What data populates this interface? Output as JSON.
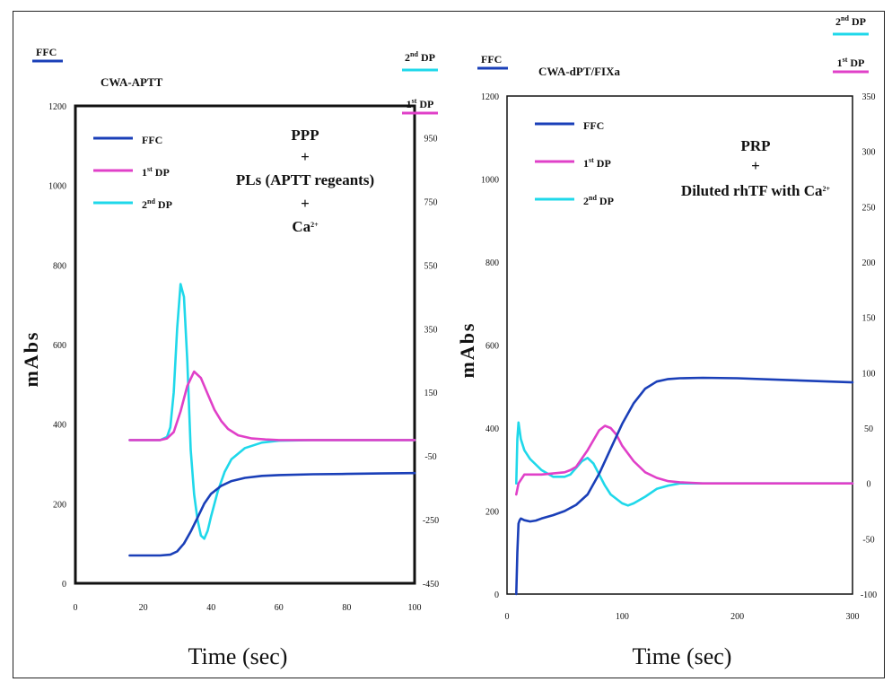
{
  "chart_data": [
    {
      "type": "line",
      "title": "CWA-APTT",
      "xlabel": "Time (sec)",
      "ylabel": "mAbs",
      "xlim": [
        0,
        100
      ],
      "ylim_left": [
        0,
        1200
      ],
      "ylim_right": [
        -450,
        1050
      ],
      "x_ticks": [
        "0",
        "20",
        "40",
        "60",
        "80",
        "100"
      ],
      "y_left_ticks": [
        "0",
        "200",
        "400",
        "600",
        "800",
        "1000",
        "1200"
      ],
      "y_right_ticks": [
        "-450",
        "-250",
        "-50",
        "150",
        "350",
        "550",
        "750",
        "950"
      ],
      "condition": [
        "PPP",
        "+",
        "PLs (APTT regeants)",
        "+",
        "Ca"
      ],
      "condition_sup": "2+",
      "outer_legend": {
        "ffc": "FFC",
        "dp2": "2",
        "dp2_sup": "nd",
        "dp1": "1",
        "dp1_sup": "st",
        "dp_suffix": "DP"
      },
      "legend": {
        "ffc": "FFC",
        "dp1": "1",
        "dp1_sup": "st",
        "dp2": "2",
        "dp2_sup": "nd",
        "dp_suffix": "DP"
      },
      "series": [
        {
          "name": "FFC",
          "axis": "left",
          "color": "#1a3fb8",
          "x": [
            16,
            20,
            25,
            28,
            30,
            32,
            34,
            36,
            38,
            40,
            43,
            46,
            50,
            55,
            60,
            70,
            80,
            90,
            100
          ],
          "y": [
            70,
            70,
            70,
            72,
            80,
            100,
            130,
            165,
            200,
            225,
            245,
            257,
            265,
            270,
            272,
            274,
            275,
            276,
            277
          ]
        },
        {
          "name": "1st DP",
          "axis": "right",
          "color": "#e040c8",
          "x": [
            16,
            20,
            25,
            27,
            29,
            31,
            33,
            35,
            37,
            39,
            41,
            43,
            45,
            48,
            52,
            56,
            60,
            70,
            80,
            100
          ],
          "y": [
            0,
            0,
            0,
            5,
            25,
            90,
            170,
            215,
            195,
            145,
            95,
            60,
            35,
            15,
            5,
            2,
            0,
            0,
            0,
            0
          ]
        },
        {
          "name": "2nd DP",
          "axis": "right",
          "color": "#1fd8ea",
          "x": [
            16,
            20,
            25,
            27,
            28,
            29,
            30,
            31,
            32,
            33,
            34,
            35,
            36,
            37,
            38,
            39,
            40,
            42,
            44,
            46,
            50,
            55,
            60,
            70,
            80,
            100
          ],
          "y": [
            0,
            0,
            0,
            10,
            40,
            150,
            350,
            490,
            450,
            250,
            -30,
            -170,
            -250,
            -300,
            -310,
            -285,
            -240,
            -160,
            -100,
            -60,
            -25,
            -8,
            -2,
            0,
            0,
            0
          ]
        }
      ]
    },
    {
      "type": "line",
      "title": "CWA-dPT/FIXa",
      "xlabel": "Time (sec)",
      "ylabel": "mAbs",
      "xlim": [
        0,
        300
      ],
      "ylim_left": [
        0,
        1200
      ],
      "ylim_right": [
        -100,
        350
      ],
      "x_ticks": [
        "0",
        "100",
        "200",
        "300"
      ],
      "y_left_ticks": [
        "0",
        "200",
        "400",
        "600",
        "800",
        "1000",
        "1200"
      ],
      "y_right_ticks": [
        "-100",
        "-50",
        "0",
        "50",
        "100",
        "150",
        "200",
        "250",
        "300",
        "350"
      ],
      "condition": [
        "PRP",
        "+",
        "Diluted rhTF with Ca"
      ],
      "condition_sup": "2+",
      "outer_legend": {
        "ffc": "FFC",
        "dp2": "2",
        "dp2_sup": "nd",
        "dp1": "1",
        "dp1_sup": "st",
        "dp_suffix": "DP"
      },
      "legend": {
        "ffc": "FFC",
        "dp1": "1",
        "dp1_sup": "st",
        "dp2": "2",
        "dp2_sup": "nd",
        "dp_suffix": "DP"
      },
      "series": [
        {
          "name": "FFC",
          "axis": "left",
          "color": "#1a3fb8",
          "x": [
            8,
            9,
            10,
            11,
            12,
            15,
            20,
            25,
            30,
            40,
            50,
            60,
            70,
            80,
            90,
            100,
            110,
            120,
            130,
            140,
            150,
            170,
            200,
            250,
            300
          ],
          "y": [
            0,
            100,
            170,
            178,
            182,
            178,
            175,
            177,
            182,
            190,
            200,
            215,
            240,
            290,
            350,
            410,
            460,
            495,
            512,
            518,
            520,
            521,
            520,
            515,
            510
          ]
        },
        {
          "name": "1st DP",
          "axis": "right",
          "color": "#e040c8",
          "x": [
            8,
            10,
            15,
            20,
            30,
            40,
            50,
            55,
            60,
            70,
            80,
            85,
            90,
            95,
            100,
            110,
            120,
            130,
            140,
            150,
            170,
            200,
            250,
            300
          ],
          "y": [
            -10,
            0,
            8,
            8,
            8,
            9,
            10,
            12,
            15,
            30,
            48,
            52,
            50,
            44,
            34,
            20,
            10,
            5,
            2,
            1,
            0,
            0,
            0,
            0
          ]
        },
        {
          "name": "2nd DP",
          "axis": "right",
          "color": "#1fd8ea",
          "x": [
            8,
            9,
            10,
            12,
            15,
            20,
            30,
            40,
            50,
            55,
            60,
            65,
            70,
            75,
            80,
            85,
            90,
            100,
            105,
            110,
            120,
            130,
            140,
            150,
            170,
            200,
            250,
            300
          ],
          "y": [
            0,
            40,
            55,
            40,
            30,
            22,
            12,
            6,
            6,
            8,
            14,
            20,
            23,
            18,
            8,
            -2,
            -10,
            -18,
            -20,
            -18,
            -12,
            -5,
            -2,
            0,
            0,
            0,
            0,
            0
          ]
        }
      ]
    }
  ]
}
